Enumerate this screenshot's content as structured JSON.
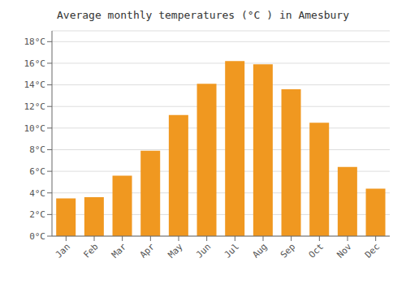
{
  "chart_data": {
    "type": "bar",
    "title": "Average monthly temperatures (°C ) in Amesbury",
    "categories": [
      "Jan",
      "Feb",
      "Mar",
      "Apr",
      "May",
      "Jun",
      "Jul",
      "Aug",
      "Sep",
      "Oct",
      "Nov",
      "Dec"
    ],
    "values": [
      3.5,
      3.6,
      5.6,
      7.9,
      11.2,
      14.1,
      16.2,
      15.9,
      13.6,
      10.5,
      6.4,
      4.4
    ],
    "color": "#F09820",
    "ylim": [
      0,
      19
    ],
    "yticks": [
      {
        "value": 0,
        "label": "0°C"
      },
      {
        "value": 2,
        "label": "2°C"
      },
      {
        "value": 4,
        "label": "4°C"
      },
      {
        "value": 6,
        "label": "6°C"
      },
      {
        "value": 8,
        "label": "8°C"
      },
      {
        "value": 10,
        "label": "10°C"
      },
      {
        "value": 12,
        "label": "12°C"
      },
      {
        "value": 14,
        "label": "14°C"
      },
      {
        "value": 16,
        "label": "16°C"
      },
      {
        "value": 18,
        "label": "18°C"
      }
    ],
    "grid": true
  }
}
